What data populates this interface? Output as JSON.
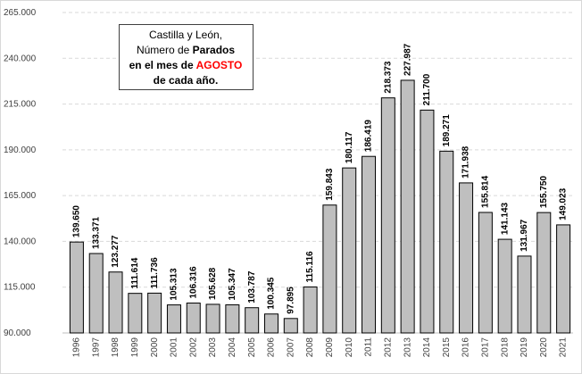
{
  "chart_data": {
    "type": "bar",
    "title": [
      "Castilla y León,",
      "Número de",
      "Parados",
      "en el mes de",
      "AGOSTO",
      "de cada año."
    ],
    "categories": [
      "1996",
      "1997",
      "1998",
      "1999",
      "2000",
      "2001",
      "2002",
      "2003",
      "2004",
      "2005",
      "2006",
      "2007",
      "2008",
      "2009",
      "2010",
      "2011",
      "2012",
      "2013",
      "2014",
      "2015",
      "2016",
      "2017",
      "2018",
      "2019",
      "2020",
      "2021"
    ],
    "values": [
      139650,
      133371,
      123277,
      111614,
      111736,
      105313,
      106316,
      105628,
      105347,
      103787,
      100345,
      97895,
      115116,
      159843,
      180117,
      186419,
      218373,
      227987,
      211700,
      189271,
      171938,
      155814,
      141143,
      131967,
      155750,
      149023
    ],
    "value_labels": [
      "139.650",
      "133.371",
      "123.277",
      "111.614",
      "111.736",
      "105.313",
      "106.316",
      "105.628",
      "105.347",
      "103.787",
      "100.345",
      "97.895",
      "115.116",
      "159.843",
      "180.117",
      "186.419",
      "218.373",
      "227.987",
      "211.700",
      "189.271",
      "171.938",
      "155.814",
      "141.143",
      "131.967",
      "155.750",
      "149.023"
    ],
    "color": "#bfbfbf",
    "ylim": [
      90000,
      265000
    ],
    "yticks": [
      {
        "value": 90000,
        "label": "90.000"
      },
      {
        "value": 115000,
        "label": "115.000"
      },
      {
        "value": 140000,
        "label": "140.000"
      },
      {
        "value": 165000,
        "label": "165.000"
      },
      {
        "value": 190000,
        "label": "190.000"
      },
      {
        "value": 215000,
        "label": "215.000"
      },
      {
        "value": 240000,
        "label": "240.000"
      },
      {
        "value": 265000,
        "label": "265.000"
      }
    ],
    "grid": true
  }
}
